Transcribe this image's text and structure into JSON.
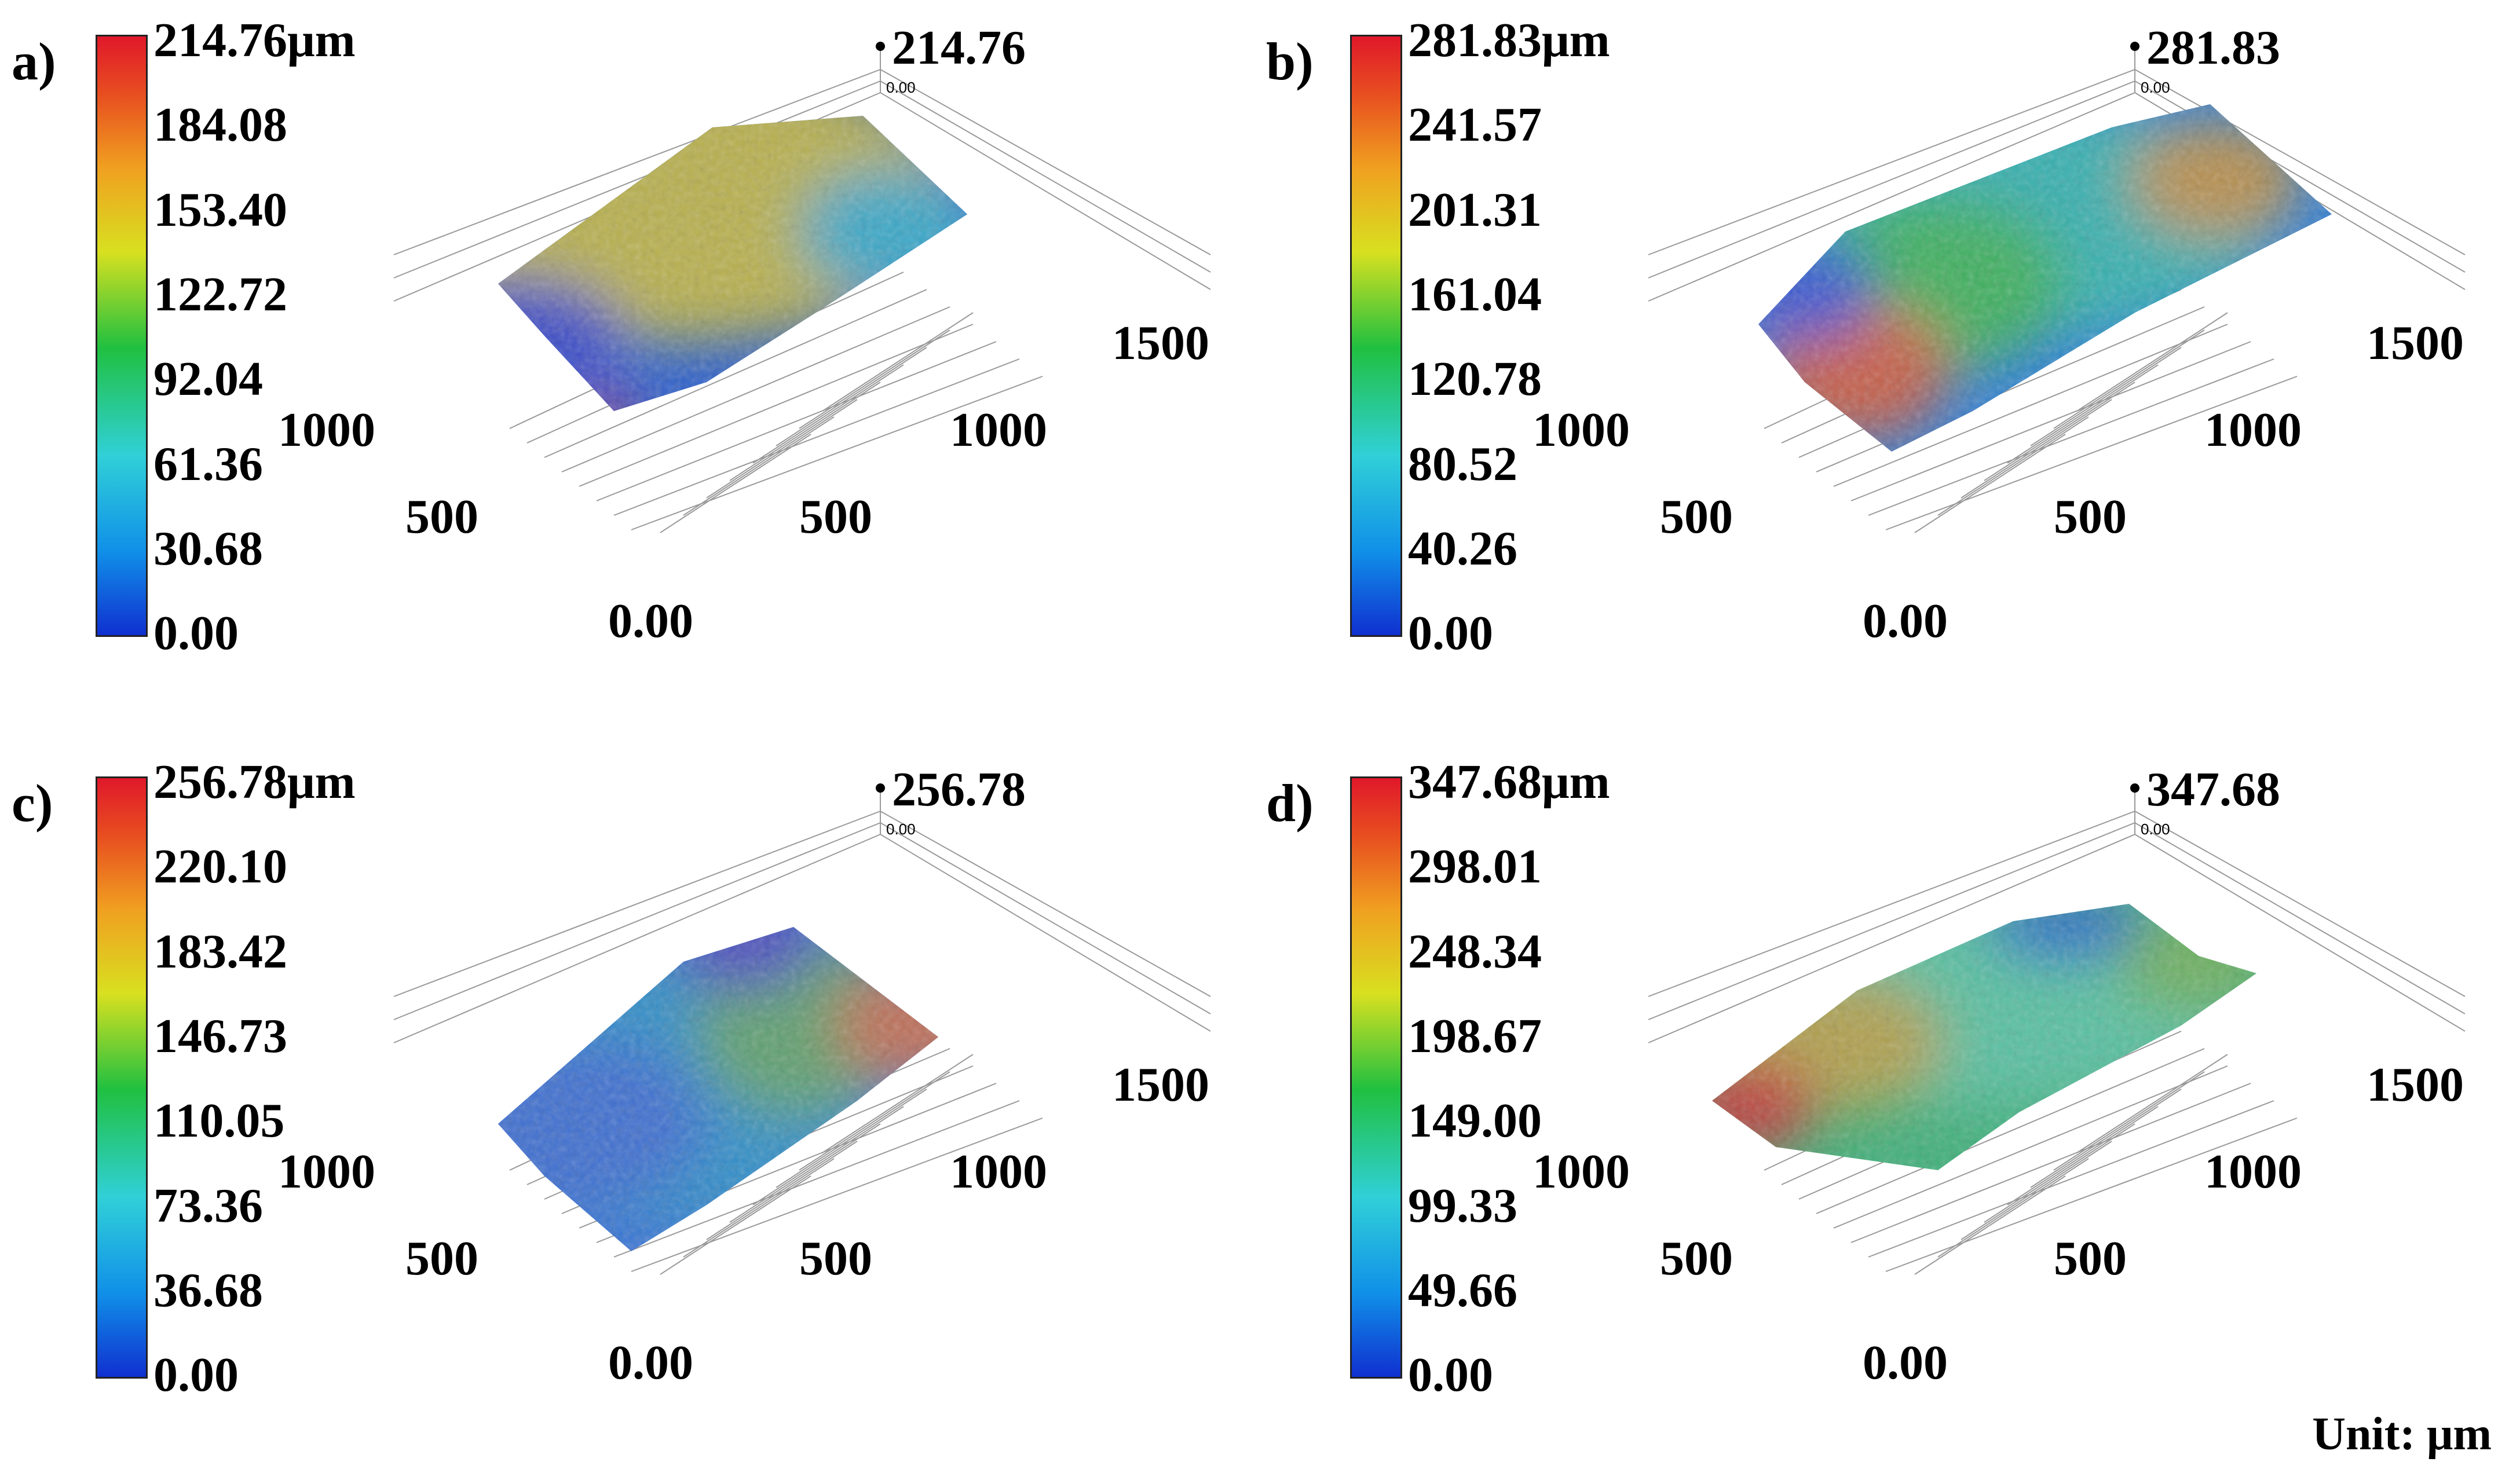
{
  "chart_data": [
    {
      "type": "surface3d",
      "panel_label": "a)",
      "colorbar_ticks": [
        "214.76μm",
        "184.08",
        "153.40",
        "122.72",
        "92.04",
        "61.36",
        "30.68",
        "0.00"
      ],
      "z_range": [
        0.0,
        214.76
      ],
      "z_max_label": "214.76",
      "z_min_label": "0.00",
      "x_ticks": [
        "0.00",
        "500",
        "1000",
        "1500"
      ],
      "y_ticks": [
        "500",
        "1000"
      ]
    },
    {
      "type": "surface3d",
      "panel_label": "b)",
      "colorbar_ticks": [
        "281.83μm",
        "241.57",
        "201.31",
        "161.04",
        "120.78",
        "80.52",
        "40.26",
        "0.00"
      ],
      "z_range": [
        0.0,
        281.83
      ],
      "z_max_label": "281.83",
      "z_min_label": "0.00",
      "x_ticks": [
        "0.00",
        "500",
        "1000",
        "1500"
      ],
      "y_ticks": [
        "500",
        "1000"
      ]
    },
    {
      "type": "surface3d",
      "panel_label": "c)",
      "colorbar_ticks": [
        "256.78μm",
        "220.10",
        "183.42",
        "146.73",
        "110.05",
        "73.36",
        "36.68",
        "0.00"
      ],
      "z_range": [
        0.0,
        256.78
      ],
      "z_max_label": "256.78",
      "z_min_label": "0.00",
      "x_ticks": [
        "0.00",
        "500",
        "1000",
        "1500"
      ],
      "y_ticks": [
        "500",
        "1000"
      ]
    },
    {
      "type": "surface3d",
      "panel_label": "d)",
      "colorbar_ticks": [
        "347.68μm",
        "298.01",
        "248.34",
        "198.67",
        "149.00",
        "99.33",
        "49.66",
        "0.00"
      ],
      "z_range": [
        0.0,
        347.68
      ],
      "z_max_label": "347.68",
      "z_min_label": "0.00",
      "x_ticks": [
        "0.00",
        "500",
        "1000",
        "1500"
      ],
      "y_ticks": [
        "500",
        "1000"
      ]
    }
  ],
  "unit_label": "Unit: μm"
}
